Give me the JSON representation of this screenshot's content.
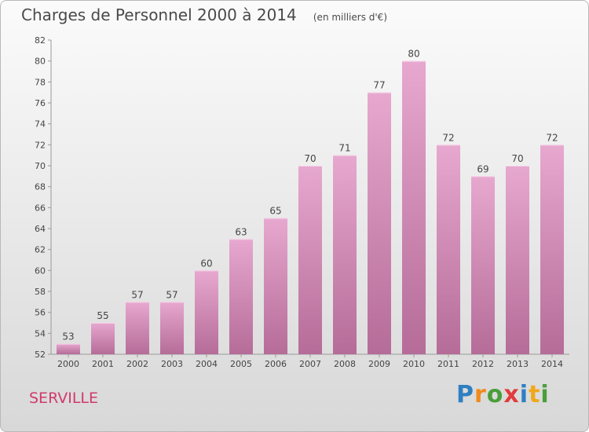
{
  "title": "Charges de Personnel 2000 à 2014",
  "subtitle": "(en milliers d'€)",
  "city": "SERVILLE",
  "logo": {
    "letters": [
      "P",
      "r",
      "o",
      "x",
      "i",
      "t",
      "i"
    ],
    "colors": [
      "#2f7fc1",
      "#f08a1c",
      "#4a9e3a",
      "#e23b3b",
      "#2f7fc1",
      "#f0a81c",
      "#4a9e3a"
    ]
  },
  "colors": {
    "bar_top": "#e7a8cf",
    "bar_bottom": "#b56c98",
    "city": "#d03a6c"
  },
  "chart_data": {
    "type": "bar",
    "categories": [
      "2000",
      "2001",
      "2002",
      "2003",
      "2004",
      "2005",
      "2006",
      "2007",
      "2008",
      "2009",
      "2010",
      "2011",
      "2012",
      "2013",
      "2014"
    ],
    "values": [
      53,
      55,
      57,
      57,
      60,
      63,
      65,
      70,
      71,
      77,
      80,
      72,
      69,
      70,
      72
    ],
    "title": "Charges de Personnel 2000 à 2014",
    "xlabel": "",
    "ylabel": "",
    "ylim": [
      52,
      82
    ],
    "yticks": [
      52,
      54,
      56,
      58,
      60,
      62,
      64,
      66,
      68,
      70,
      72,
      74,
      76,
      78,
      80,
      82
    ],
    "grid": false,
    "data_labels": true
  }
}
